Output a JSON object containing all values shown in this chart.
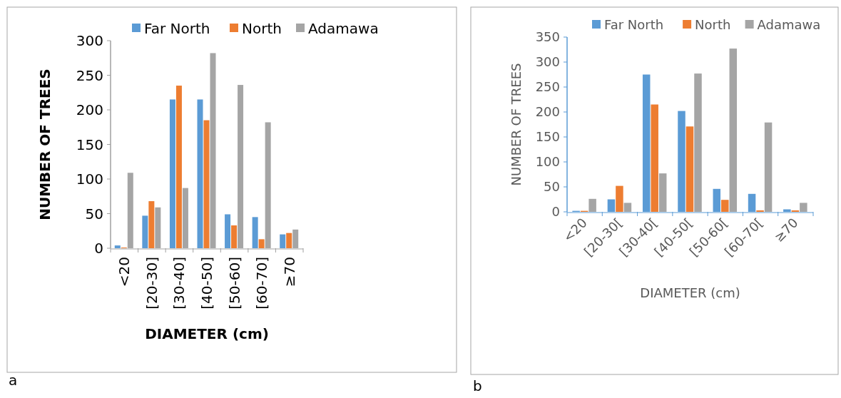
{
  "chart_data": [
    {
      "type": "bar",
      "xlabel": "DIAMETER (cm)",
      "ylabel": "NUMBER OF TREES",
      "categories": [
        "<20",
        "[20-30]",
        "[30-40]",
        "[40-50]",
        "[50-60]",
        "[60-70]",
        "≥70"
      ],
      "series": [
        {
          "name": "Far North",
          "color": "#5b9bd5",
          "values": [
            4,
            47,
            215,
            215,
            49,
            45,
            20
          ]
        },
        {
          "name": "North",
          "color": "#ed7d31",
          "values": [
            1,
            68,
            235,
            185,
            33,
            13,
            22
          ]
        },
        {
          "name": "Adamawa",
          "color": "#a5a5a5",
          "values": [
            109,
            59,
            87,
            282,
            236,
            182,
            27
          ]
        }
      ],
      "ylim": [
        0,
        300
      ],
      "yticks": [
        0,
        50,
        100,
        150,
        200,
        250,
        300
      ],
      "grid": false,
      "legend": "top",
      "annotations": [
        "a"
      ]
    },
    {
      "type": "bar",
      "xlabel": "DIAMETER (cm)",
      "ylabel": "NUMBER OF TREES",
      "categories": [
        "<20",
        "[20-30[",
        "[30-40[",
        "[40-50[",
        "[50-60[",
        "[60-70[",
        "≥70"
      ],
      "series": [
        {
          "name": "Far North",
          "color": "#5b9bd5",
          "values": [
            2,
            25,
            275,
            202,
            46,
            36,
            5
          ]
        },
        {
          "name": "North",
          "color": "#ed7d31",
          "values": [
            2,
            52,
            215,
            171,
            24,
            3,
            3
          ]
        },
        {
          "name": "Adamawa",
          "color": "#a5a5a5",
          "values": [
            26,
            18,
            77,
            277,
            327,
            179,
            18
          ]
        }
      ],
      "ylim": [
        0,
        350
      ],
      "yticks": [
        0,
        50,
        100,
        150,
        200,
        250,
        300,
        350
      ],
      "grid": false,
      "legend": "top",
      "annotations": [
        "b"
      ]
    }
  ]
}
